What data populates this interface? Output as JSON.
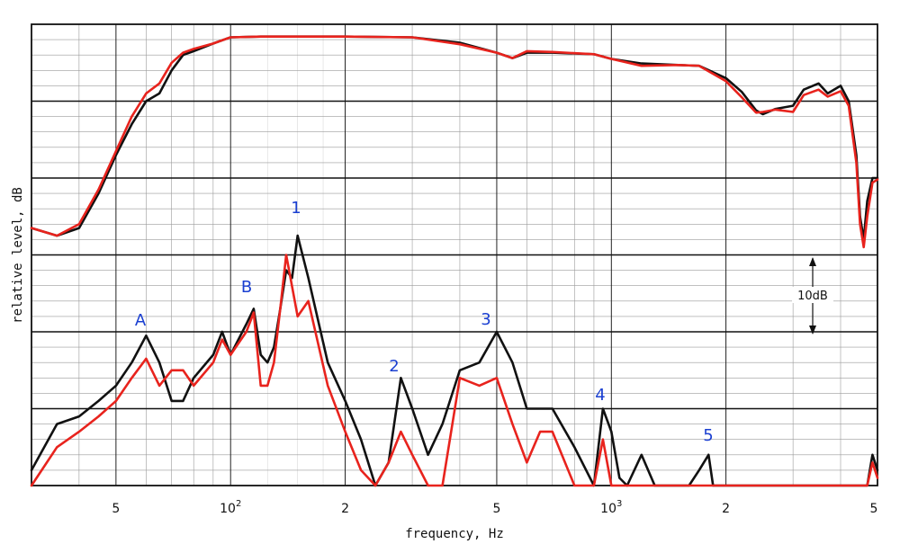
{
  "chart_data": {
    "type": "line",
    "xlabel": "frequency, Hz",
    "ylabel": "relative level, dB",
    "xscale": "log",
    "xlim": [
      30,
      5000
    ],
    "x_ticks": [
      {
        "value": 50,
        "label": "5"
      },
      {
        "value": 100,
        "label": "10",
        "exp": "2"
      },
      {
        "value": 200,
        "label": "2"
      },
      {
        "value": 500,
        "label": "5"
      },
      {
        "value": 1000,
        "label": "10",
        "exp": "3"
      },
      {
        "value": 2000,
        "label": "2"
      },
      {
        "value": 5000,
        "label": "5"
      }
    ],
    "ylim": [
      0,
      60
    ],
    "grid": "on",
    "scale_marker": "10dB",
    "colors": {
      "black_trace": "#111111",
      "red_trace": "#e8231d",
      "peak_labels": "#1a3fd1",
      "major_grid": "#111111",
      "minor_grid": "#9a9a9a"
    },
    "groups": [
      {
        "group": "upper",
        "series": [
          {
            "color": "#111111",
            "points": [
              [
                30,
                33.5
              ],
              [
                35,
                32.5
              ],
              [
                40,
                33.5
              ],
              [
                45,
                38
              ],
              [
                50,
                43
              ],
              [
                55,
                47
              ],
              [
                60,
                50
              ],
              [
                65,
                51
              ],
              [
                70,
                54
              ],
              [
                75,
                56
              ],
              [
                80,
                56.5
              ],
              [
                90,
                57.5
              ],
              [
                100,
                58.3
              ],
              [
                120,
                58.4
              ],
              [
                150,
                58.4
              ],
              [
                200,
                58.4
              ],
              [
                300,
                58.3
              ],
              [
                400,
                57.6
              ],
              [
                500,
                56.3
              ],
              [
                550,
                55.6
              ],
              [
                600,
                56.3
              ],
              [
                700,
                56.3
              ],
              [
                900,
                56.1
              ],
              [
                1000,
                55.5
              ],
              [
                1200,
                54.9
              ],
              [
                1500,
                54.7
              ],
              [
                1700,
                54.6
              ],
              [
                2000,
                53
              ],
              [
                2200,
                51.2
              ],
              [
                2400,
                48.8
              ],
              [
                2500,
                48.3
              ],
              [
                2700,
                49
              ],
              [
                3000,
                49.4
              ],
              [
                3200,
                51.5
              ],
              [
                3500,
                52.3
              ],
              [
                3700,
                51
              ],
              [
                4000,
                52
              ],
              [
                4200,
                50
              ],
              [
                4400,
                43
              ],
              [
                4500,
                35
              ],
              [
                4600,
                32
              ],
              [
                4700,
                37
              ],
              [
                4850,
                40
              ],
              [
                5000,
                40
              ]
            ]
          },
          {
            "color": "#e8231d",
            "points": [
              [
                30,
                33.5
              ],
              [
                35,
                32.5
              ],
              [
                40,
                34
              ],
              [
                45,
                38.5
              ],
              [
                50,
                43.5
              ],
              [
                55,
                48
              ],
              [
                60,
                51
              ],
              [
                65,
                52.3
              ],
              [
                70,
                55
              ],
              [
                75,
                56.3
              ],
              [
                80,
                56.8
              ],
              [
                90,
                57.5
              ],
              [
                100,
                58.3
              ],
              [
                120,
                58.4
              ],
              [
                150,
                58.4
              ],
              [
                200,
                58.4
              ],
              [
                300,
                58.3
              ],
              [
                400,
                57.4
              ],
              [
                500,
                56.3
              ],
              [
                550,
                55.6
              ],
              [
                600,
                56.5
              ],
              [
                700,
                56.4
              ],
              [
                900,
                56.1
              ],
              [
                1000,
                55.5
              ],
              [
                1200,
                54.6
              ],
              [
                1500,
                54.7
              ],
              [
                1700,
                54.6
              ],
              [
                2000,
                52.6
              ],
              [
                2200,
                50.5
              ],
              [
                2400,
                48.5
              ],
              [
                2500,
                48.6
              ],
              [
                2700,
                48.9
              ],
              [
                3000,
                48.6
              ],
              [
                3200,
                50.8
              ],
              [
                3500,
                51.5
              ],
              [
                3700,
                50.6
              ],
              [
                4000,
                51.3
              ],
              [
                4200,
                49.4
              ],
              [
                4400,
                42
              ],
              [
                4500,
                34
              ],
              [
                4600,
                31
              ],
              [
                4700,
                35
              ],
              [
                4850,
                39.4
              ],
              [
                5000,
                39.8
              ]
            ]
          }
        ]
      },
      {
        "group": "lower",
        "series": [
          {
            "color": "#111111",
            "points": [
              [
                30,
                2
              ],
              [
                35,
                8
              ],
              [
                40,
                9
              ],
              [
                45,
                11
              ],
              [
                50,
                13
              ],
              [
                55,
                16
              ],
              [
                60,
                19.5
              ],
              [
                65,
                16
              ],
              [
                70,
                11
              ],
              [
                75,
                11
              ],
              [
                80,
                14
              ],
              [
                90,
                17
              ],
              [
                95,
                20
              ],
              [
                100,
                17
              ],
              [
                110,
                21
              ],
              [
                115,
                23
              ],
              [
                120,
                17
              ],
              [
                125,
                16
              ],
              [
                130,
                18
              ],
              [
                135,
                23
              ],
              [
                140,
                28
              ],
              [
                145,
                27
              ],
              [
                150,
                32.5
              ],
              [
                160,
                27
              ],
              [
                180,
                16
              ],
              [
                200,
                11
              ],
              [
                220,
                6
              ],
              [
                240,
                0
              ],
              [
                260,
                3
              ],
              [
                280,
                14
              ],
              [
                300,
                10
              ],
              [
                330,
                4
              ],
              [
                360,
                8
              ],
              [
                400,
                15
              ],
              [
                450,
                16
              ],
              [
                500,
                20
              ],
              [
                550,
                16
              ],
              [
                600,
                10
              ],
              [
                700,
                10
              ],
              [
                800,
                5
              ],
              [
                900,
                0
              ],
              [
                950,
                10
              ],
              [
                1000,
                7
              ],
              [
                1050,
                1
              ],
              [
                1100,
                0
              ],
              [
                1200,
                4
              ],
              [
                1300,
                0
              ],
              [
                1600,
                0
              ],
              [
                1700,
                2
              ],
              [
                1800,
                4
              ],
              [
                1850,
                0
              ],
              [
                2000,
                0
              ],
              [
                4700,
                0
              ],
              [
                4850,
                4
              ],
              [
                5000,
                2
              ]
            ]
          },
          {
            "color": "#e8231d",
            "points": [
              [
                30,
                0
              ],
              [
                35,
                5
              ],
              [
                40,
                7
              ],
              [
                45,
                9
              ],
              [
                50,
                11
              ],
              [
                55,
                14
              ],
              [
                60,
                16.5
              ],
              [
                65,
                13
              ],
              [
                70,
                15
              ],
              [
                75,
                15
              ],
              [
                80,
                13
              ],
              [
                90,
                16
              ],
              [
                95,
                19
              ],
              [
                100,
                17
              ],
              [
                110,
                20
              ],
              [
                115,
                22.5
              ],
              [
                120,
                13
              ],
              [
                125,
                13
              ],
              [
                130,
                16
              ],
              [
                135,
                23
              ],
              [
                140,
                30
              ],
              [
                150,
                22
              ],
              [
                160,
                24
              ],
              [
                180,
                13
              ],
              [
                200,
                7
              ],
              [
                220,
                2
              ],
              [
                240,
                0
              ],
              [
                260,
                3
              ],
              [
                280,
                7
              ],
              [
                300,
                4
              ],
              [
                330,
                0
              ],
              [
                360,
                0
              ],
              [
                400,
                14
              ],
              [
                450,
                13
              ],
              [
                500,
                14
              ],
              [
                550,
                8
              ],
              [
                600,
                3
              ],
              [
                650,
                7
              ],
              [
                700,
                7
              ],
              [
                800,
                0
              ],
              [
                900,
                0
              ],
              [
                950,
                6
              ],
              [
                1000,
                0
              ],
              [
                2000,
                0
              ],
              [
                4700,
                0
              ],
              [
                4850,
                3
              ],
              [
                5000,
                1
              ]
            ]
          }
        ]
      }
    ],
    "annotations": [
      "A",
      "B",
      "1",
      "2",
      "3",
      "4",
      "5"
    ]
  }
}
